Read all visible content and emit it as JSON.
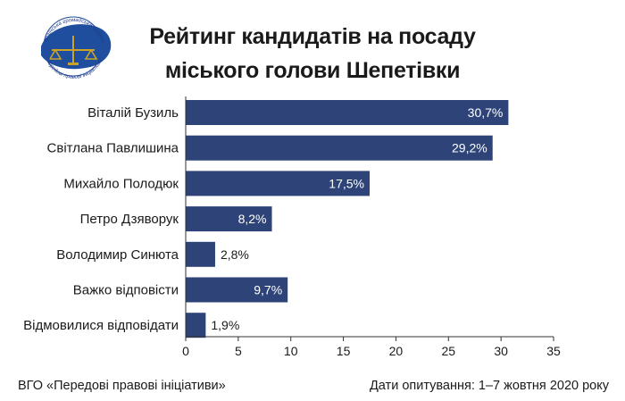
{
  "colors": {
    "bar": "#2e4478",
    "axis": "#333333",
    "logo_blue": "#1f4e9e",
    "logo_gold": "#c9a227"
  },
  "logo": {
    "icon": "scales-of-justice-map-logo",
    "arc_text_top": "Всеукраїнська громадська організація",
    "arc_text_bottom": "\"Передові правові ініціативи\""
  },
  "chart_data": {
    "type": "bar",
    "orientation": "horizontal",
    "title_line1": "Рейтинг кандидатів на посаду",
    "title_line2": "міського голови Шепетівки",
    "categories": [
      "Віталій Бузиль",
      "Світлана Павлишина",
      "Михайло Полодюк",
      "Петро Дзяворук",
      "Володимир Синюта",
      "Важко відповісти",
      "Відмовилися відповідати"
    ],
    "values": [
      30.7,
      29.2,
      17.5,
      8.2,
      2.8,
      9.7,
      1.9
    ],
    "value_labels": [
      "30,7%",
      "29,2%",
      "17,5%",
      "8,2%",
      "2,8%",
      "9,7%",
      "1,9%"
    ],
    "xlim": [
      0,
      35
    ],
    "xticks": [
      0,
      5,
      10,
      15,
      20,
      25,
      30,
      35
    ],
    "grid": false,
    "legend": "none"
  },
  "footer": {
    "source": "ВГО «Передові правові ініціативи»",
    "dates": "Дати опитування: 1–7 жовтня 2020 року"
  }
}
